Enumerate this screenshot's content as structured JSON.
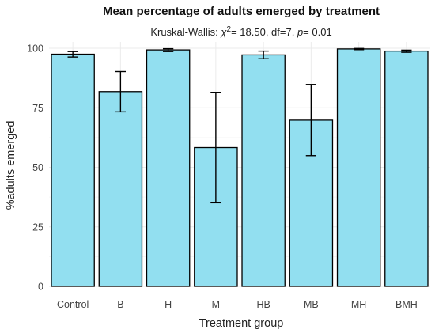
{
  "chart_data": {
    "type": "bar",
    "title": "Mean percentage of adults emerged by treatment",
    "subtitle": {
      "prefix": "Kruskal-Wallis: ",
      "stat_symbol": "χ",
      "stat_exponent": "2",
      "stat_value": "= 18.50, df=7, ",
      "p_symbol": "p",
      "p_value": "= 0.01"
    },
    "xlabel": "Treatment group",
    "ylabel": "%adults emerged",
    "ylim": [
      0,
      100
    ],
    "yticks": [
      0,
      25,
      50,
      75,
      100
    ],
    "grid": true,
    "bar_color": "#92dff0",
    "categories": [
      "Control",
      "B",
      "H",
      "M",
      "HB",
      "MB",
      "MH",
      "BMH"
    ],
    "values": [
      97.5,
      81.8,
      99.3,
      58.3,
      97.2,
      69.8,
      99.7,
      98.8
    ],
    "error_low": [
      96.3,
      73.3,
      98.6,
      35.1,
      95.6,
      54.9,
      99.4,
      98.3
    ],
    "error_high": [
      98.6,
      90.2,
      99.8,
      81.5,
      98.8,
      84.8,
      99.9,
      99.2
    ]
  }
}
